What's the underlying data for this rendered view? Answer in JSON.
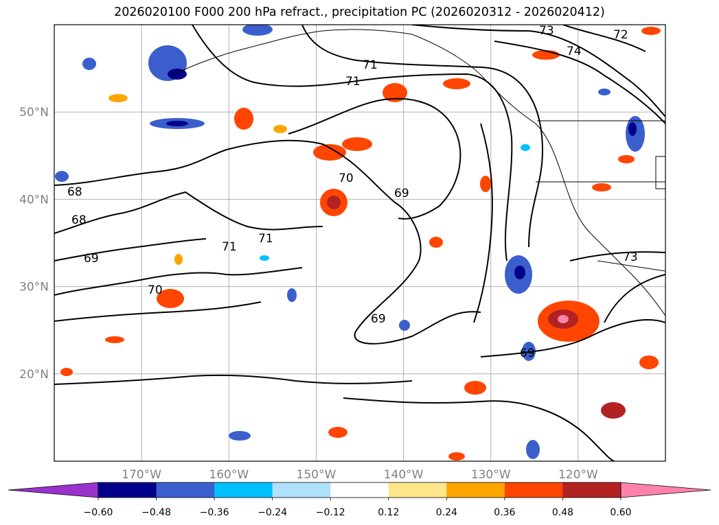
{
  "title": "2026020100 F000 200 hPa refract., precipitation PC (2026020312 - 2026020412)",
  "map": {
    "lat_ticks": [
      {
        "label": "50°N",
        "lat": 50
      },
      {
        "label": "40°N",
        "lat": 40
      },
      {
        "label": "30°N",
        "lat": 30
      },
      {
        "label": "20°N",
        "lat": 20
      }
    ],
    "lon_ticks": [
      {
        "label": "170°W",
        "lon": -170
      },
      {
        "label": "160°W",
        "lon": -160
      },
      {
        "label": "150°W",
        "lon": -150
      },
      {
        "label": "140°W",
        "lon": -140
      },
      {
        "label": "130°W",
        "lon": -130
      },
      {
        "label": "120°W",
        "lon": -120
      }
    ],
    "lon_range": [
      -180,
      -110
    ],
    "lat_range": [
      10,
      60
    ],
    "contour_labels": [
      "73",
      "72",
      "71",
      "71",
      "71",
      "71",
      "70",
      "70",
      "69",
      "69",
      "69",
      "69",
      "68",
      "68",
      "73",
      "74"
    ]
  },
  "colorbar": {
    "ticks": [
      "−0.60",
      "−0.48",
      "−0.36",
      "−0.24",
      "−0.12",
      "0.12",
      "0.24",
      "0.36",
      "0.48",
      "0.60"
    ],
    "colors": [
      "#9932cc",
      "#00008b",
      "#3a5fcd",
      "#00bfff",
      "#b0e2ff",
      "#ffffff",
      "#fde68a",
      "#ffa500",
      "#ff4500",
      "#b22222",
      "#ff82ab"
    ]
  }
}
